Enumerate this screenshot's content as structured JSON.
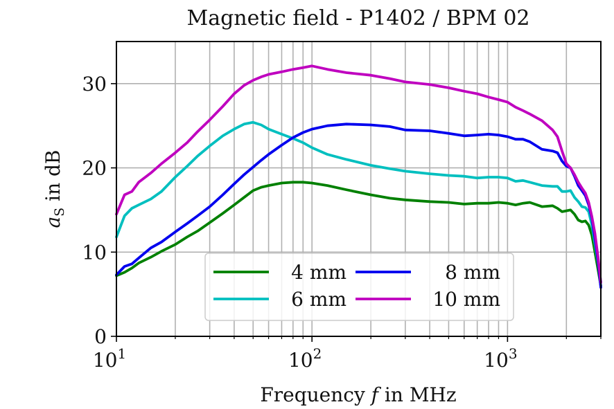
{
  "chart_data": {
    "type": "line",
    "title": "Magnetic field - P1402 / BPM 02",
    "xlabel_parts": {
      "pre": "Frequency ",
      "var": "f",
      "post": " in MHz"
    },
    "ylabel_parts": {
      "var": "a",
      "sub": "S",
      "post": " in dB"
    },
    "x_scale": "log",
    "xlim": [
      10,
      3000
    ],
    "ylim": [
      0,
      35
    ],
    "grid": true,
    "x_ticks": [
      {
        "base": "10",
        "exp": "1"
      },
      {
        "base": "10",
        "exp": "2"
      },
      {
        "base": "10",
        "exp": "3"
      }
    ],
    "y_ticks": [
      "0",
      "10",
      "20",
      "30"
    ],
    "legend": {
      "position": "lower-center",
      "ncol": 2
    },
    "series": [
      {
        "name": "4 mm",
        "color": "#008000",
        "x": [
          10,
          11,
          12,
          13,
          15,
          17,
          20,
          23,
          26,
          30,
          35,
          40,
          45,
          50,
          55,
          60,
          70,
          80,
          90,
          100,
          120,
          150,
          200,
          250,
          300,
          400,
          500,
          600,
          700,
          800,
          900,
          1000,
          1100,
          1200,
          1300,
          1500,
          1700,
          1800,
          1900,
          2000,
          2100,
          2200,
          2300,
          2400,
          2500,
          2600,
          2700,
          2800,
          2900,
          3000
        ],
        "y": [
          7.2,
          7.6,
          8.1,
          8.7,
          9.4,
          10.1,
          10.9,
          11.8,
          12.5,
          13.5,
          14.6,
          15.6,
          16.5,
          17.3,
          17.7,
          17.9,
          18.2,
          18.3,
          18.3,
          18.2,
          17.9,
          17.4,
          16.8,
          16.4,
          16.2,
          16.0,
          15.9,
          15.7,
          15.8,
          15.8,
          15.9,
          15.8,
          15.6,
          15.8,
          15.9,
          15.4,
          15.5,
          15.2,
          14.8,
          14.9,
          15.0,
          14.5,
          13.8,
          13.6,
          13.7,
          13.2,
          12.0,
          10.0,
          8.0,
          6.0
        ]
      },
      {
        "name": "6 mm",
        "color": "#00bfbf",
        "x": [
          10,
          11,
          12,
          13,
          15,
          17,
          20,
          23,
          26,
          30,
          35,
          40,
          45,
          50,
          55,
          60,
          70,
          80,
          90,
          100,
          120,
          150,
          200,
          250,
          300,
          400,
          500,
          600,
          700,
          800,
          900,
          1000,
          1100,
          1200,
          1300,
          1500,
          1700,
          1800,
          1900,
          2000,
          2100,
          2200,
          2300,
          2400,
          2500,
          2600,
          2700,
          2800,
          2900,
          3000
        ],
        "y": [
          11.8,
          14.3,
          15.2,
          15.6,
          16.3,
          17.2,
          18.9,
          20.2,
          21.4,
          22.6,
          23.8,
          24.6,
          25.2,
          25.4,
          25.1,
          24.6,
          24.0,
          23.5,
          23.0,
          22.4,
          21.6,
          21.0,
          20.3,
          19.9,
          19.6,
          19.3,
          19.1,
          19.0,
          18.8,
          18.9,
          18.9,
          18.8,
          18.4,
          18.5,
          18.3,
          17.9,
          17.8,
          17.8,
          17.2,
          17.2,
          17.3,
          16.5,
          16.0,
          15.4,
          15.3,
          14.8,
          13.2,
          11.0,
          8.8,
          6.5
        ]
      },
      {
        "name": "8 mm",
        "color": "#0000ee",
        "x": [
          10,
          11,
          12,
          13,
          15,
          17,
          20,
          23,
          26,
          30,
          35,
          40,
          45,
          50,
          55,
          60,
          70,
          80,
          90,
          100,
          120,
          150,
          200,
          250,
          300,
          400,
          500,
          600,
          700,
          800,
          900,
          1000,
          1100,
          1200,
          1300,
          1500,
          1700,
          1800,
          1900,
          2000,
          2100,
          2200,
          2300,
          2400,
          2500,
          2600,
          2700,
          2800,
          2900,
          3000
        ],
        "y": [
          7.3,
          8.3,
          8.6,
          9.3,
          10.5,
          11.2,
          12.4,
          13.4,
          14.3,
          15.4,
          16.8,
          18.1,
          19.2,
          20.1,
          20.9,
          21.6,
          22.7,
          23.6,
          24.2,
          24.6,
          25.0,
          25.2,
          25.1,
          24.9,
          24.5,
          24.4,
          24.1,
          23.8,
          23.9,
          24.0,
          23.9,
          23.7,
          23.4,
          23.4,
          23.1,
          22.2,
          22.0,
          21.8,
          20.8,
          20.2,
          20.0,
          19.0,
          17.9,
          17.3,
          16.7,
          15.6,
          14.0,
          11.6,
          9.0,
          5.8
        ]
      },
      {
        "name": "10 mm",
        "color": "#bf00bf",
        "x": [
          10,
          11,
          12,
          13,
          15,
          17,
          20,
          23,
          26,
          30,
          35,
          40,
          45,
          50,
          55,
          60,
          70,
          80,
          90,
          100,
          120,
          150,
          200,
          250,
          300,
          400,
          500,
          600,
          700,
          800,
          900,
          1000,
          1100,
          1200,
          1300,
          1500,
          1700,
          1800,
          1900,
          2000,
          2100,
          2200,
          2300,
          2400,
          2500,
          2600,
          2700,
          2800,
          2900,
          3000
        ],
        "y": [
          14.5,
          16.8,
          17.2,
          18.3,
          19.4,
          20.5,
          21.8,
          23.0,
          24.3,
          25.7,
          27.3,
          28.8,
          29.8,
          30.4,
          30.8,
          31.1,
          31.4,
          31.7,
          31.9,
          32.1,
          31.7,
          31.3,
          31.0,
          30.6,
          30.2,
          29.9,
          29.5,
          29.1,
          28.8,
          28.4,
          28.1,
          27.8,
          27.2,
          26.8,
          26.4,
          25.6,
          24.5,
          23.7,
          22.0,
          20.5,
          20.0,
          19.2,
          18.3,
          17.6,
          17.0,
          15.9,
          14.2,
          12.2,
          9.5,
          6.4
        ]
      }
    ]
  }
}
